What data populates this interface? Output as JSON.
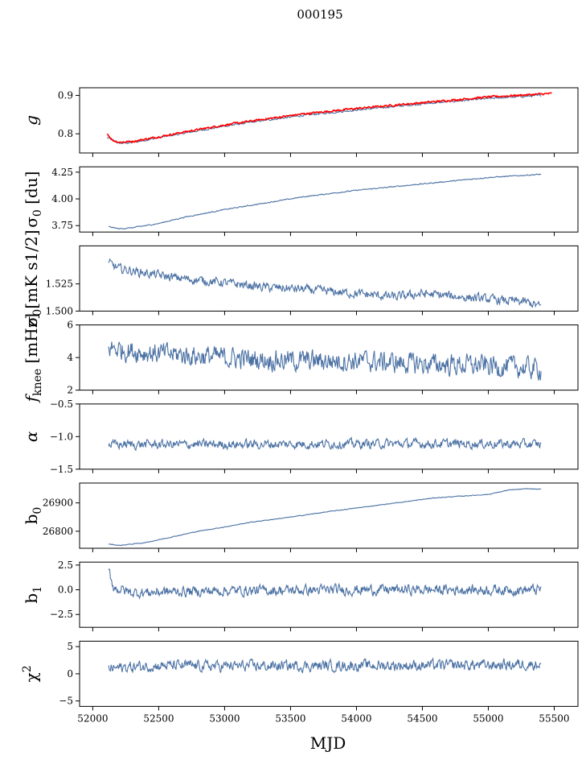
{
  "figure": {
    "title": "000195",
    "xlabel": "MJD"
  },
  "colors": {
    "series": "#4c72a4",
    "highlight": "#ff0000"
  },
  "chart_data": [
    {
      "type": "line",
      "ylabel": "g",
      "ylim": [
        0.75,
        0.92
      ],
      "yticks": [
        0.8,
        0.9
      ],
      "ytick_labels": [
        "0.8",
        "0.9"
      ],
      "x_end": 55500,
      "series": [
        {
          "color": "#4c72a4",
          "points": [
            [
              52110,
              0.79
            ],
            [
              52200,
              0.775
            ],
            [
              52300,
              0.777
            ],
            [
              52500,
              0.79
            ],
            [
              52700,
              0.802
            ],
            [
              53000,
              0.82
            ],
            [
              53300,
              0.835
            ],
            [
              53600,
              0.848
            ],
            [
              54000,
              0.862
            ],
            [
              54500,
              0.878
            ],
            [
              55000,
              0.892
            ],
            [
              55400,
              0.9
            ]
          ],
          "noise": 0.002
        },
        {
          "color": "#ff0000",
          "points": [
            [
              52110,
              0.8
            ],
            [
              52150,
              0.783
            ],
            [
              52200,
              0.778
            ],
            [
              52300,
              0.78
            ],
            [
              52500,
              0.792
            ],
            [
              52700,
              0.805
            ],
            [
              53000,
              0.823
            ],
            [
              53300,
              0.838
            ],
            [
              53600,
              0.852
            ],
            [
              54000,
              0.866
            ],
            [
              54500,
              0.881
            ],
            [
              55000,
              0.896
            ],
            [
              55480,
              0.905
            ]
          ],
          "noise": 0.002
        }
      ]
    },
    {
      "type": "line",
      "ylabel": "σ0 [du]",
      "ylim": [
        3.69,
        4.3
      ],
      "yticks": [
        3.75,
        4.0,
        4.25
      ],
      "ytick_labels": [
        "3.75",
        "4.00",
        "4.25"
      ],
      "series": [
        {
          "color": "#4c72a4",
          "points": [
            [
              52120,
              3.74
            ],
            [
              52200,
              3.72
            ],
            [
              52300,
              3.73
            ],
            [
              52500,
              3.77
            ],
            [
              52700,
              3.83
            ],
            [
              53000,
              3.9
            ],
            [
              53300,
              3.96
            ],
            [
              53600,
              4.02
            ],
            [
              54000,
              4.08
            ],
            [
              54500,
              4.14
            ],
            [
              55000,
              4.2
            ],
            [
              55400,
              4.23
            ]
          ],
          "noise": 0.004
        }
      ]
    },
    {
      "type": "line",
      "ylabel": "σ0[mK s1/2]",
      "ylim": [
        1.5,
        1.56
      ],
      "yticks": [
        1.5,
        1.525
      ],
      "ytick_labels": [
        "1.500",
        "1.525"
      ],
      "series": [
        {
          "color": "#4c72a4",
          "points": [
            [
              52120,
              1.544
            ],
            [
              52200,
              1.539
            ],
            [
              52400,
              1.535
            ],
            [
              52600,
              1.531
            ],
            [
              53000,
              1.526
            ],
            [
              53300,
              1.522
            ],
            [
              53600,
              1.52
            ],
            [
              54000,
              1.516
            ],
            [
              54300,
              1.513
            ],
            [
              54500,
              1.516
            ],
            [
              55000,
              1.511
            ],
            [
              55300,
              1.508
            ],
            [
              55400,
              1.504
            ]
          ],
          "noise": 0.0035
        }
      ]
    },
    {
      "type": "line",
      "ylabel": "fknee [mHz]",
      "ylim": [
        2,
        6
      ],
      "yticks": [
        2,
        4,
        6
      ],
      "ytick_labels": [
        "2",
        "4",
        "6"
      ],
      "series": [
        {
          "color": "#4c72a4",
          "points": [
            [
              52120,
              4.6
            ],
            [
              52400,
              4.3
            ],
            [
              52800,
              4.1
            ],
            [
              53200,
              3.9
            ],
            [
              53600,
              3.8
            ],
            [
              54000,
              3.8
            ],
            [
              54500,
              3.6
            ],
            [
              55000,
              3.5
            ],
            [
              55400,
              3.3
            ]
          ],
          "noise": 0.55
        }
      ]
    },
    {
      "type": "line",
      "ylabel": "α",
      "ylim": [
        -1.5,
        -0.5
      ],
      "yticks": [
        -1.5,
        -1.0,
        -0.5
      ],
      "ytick_labels": [
        "−1.5",
        "−1.0",
        "−0.5"
      ],
      "series": [
        {
          "color": "#4c72a4",
          "points": [
            [
              52120,
              -1.12
            ],
            [
              53000,
              -1.12
            ],
            [
              54000,
              -1.11
            ],
            [
              55000,
              -1.11
            ],
            [
              55400,
              -1.12
            ]
          ],
          "noise": 0.06
        }
      ]
    },
    {
      "type": "line",
      "ylabel": "b0",
      "ylim": [
        26740,
        26970
      ],
      "yticks": [
        26800,
        26900
      ],
      "ytick_labels": [
        "26800",
        "26900"
      ],
      "series": [
        {
          "color": "#4c72a4",
          "points": [
            [
              52120,
              26755
            ],
            [
              52200,
              26750
            ],
            [
              52400,
              26760
            ],
            [
              52600,
              26780
            ],
            [
              52800,
              26800
            ],
            [
              53000,
              26815
            ],
            [
              53200,
              26832
            ],
            [
              53500,
              26850
            ],
            [
              53800,
              26870
            ],
            [
              54000,
              26882
            ],
            [
              54300,
              26900
            ],
            [
              54600,
              26918
            ],
            [
              55000,
              26930
            ],
            [
              55150,
              26945
            ],
            [
              55300,
              26950
            ],
            [
              55400,
              26948
            ]
          ],
          "noise": 1.0
        }
      ]
    },
    {
      "type": "line",
      "ylabel": "b1",
      "ylim": [
        -3.8,
        2.8
      ],
      "yticks": [
        -2.5,
        0.0,
        2.5
      ],
      "ytick_labels": [
        "−2.5",
        "0.0",
        "2.5"
      ],
      "series": [
        {
          "color": "#4c72a4",
          "points": [
            [
              52120,
              2.0
            ],
            [
              52160,
              0.2
            ],
            [
              52300,
              -0.3
            ],
            [
              52600,
              -0.2
            ],
            [
              53000,
              -0.1
            ],
            [
              54000,
              0.0
            ],
            [
              55000,
              0.0
            ],
            [
              55400,
              0.0
            ]
          ],
          "noise": 0.45
        }
      ]
    },
    {
      "type": "line",
      "ylabel": "χ2",
      "ylim": [
        -6,
        6
      ],
      "yticks": [
        -5,
        0,
        5
      ],
      "ytick_labels": [
        "−5",
        "0",
        "5"
      ],
      "series": [
        {
          "color": "#4c72a4",
          "points": [
            [
              52120,
              1.0
            ],
            [
              52500,
              1.5
            ],
            [
              53000,
              1.4
            ],
            [
              54000,
              1.5
            ],
            [
              55000,
              1.6
            ],
            [
              55400,
              1.8
            ]
          ],
          "noise": 0.85
        }
      ]
    }
  ],
  "xaxis": {
    "xlim": [
      51900,
      55680
    ],
    "ticks": [
      52000,
      52500,
      53000,
      53500,
      54000,
      54500,
      55000,
      55500
    ],
    "tick_labels": [
      "52000",
      "52500",
      "53000",
      "53500",
      "54000",
      "54500",
      "55000",
      "55500"
    ]
  }
}
